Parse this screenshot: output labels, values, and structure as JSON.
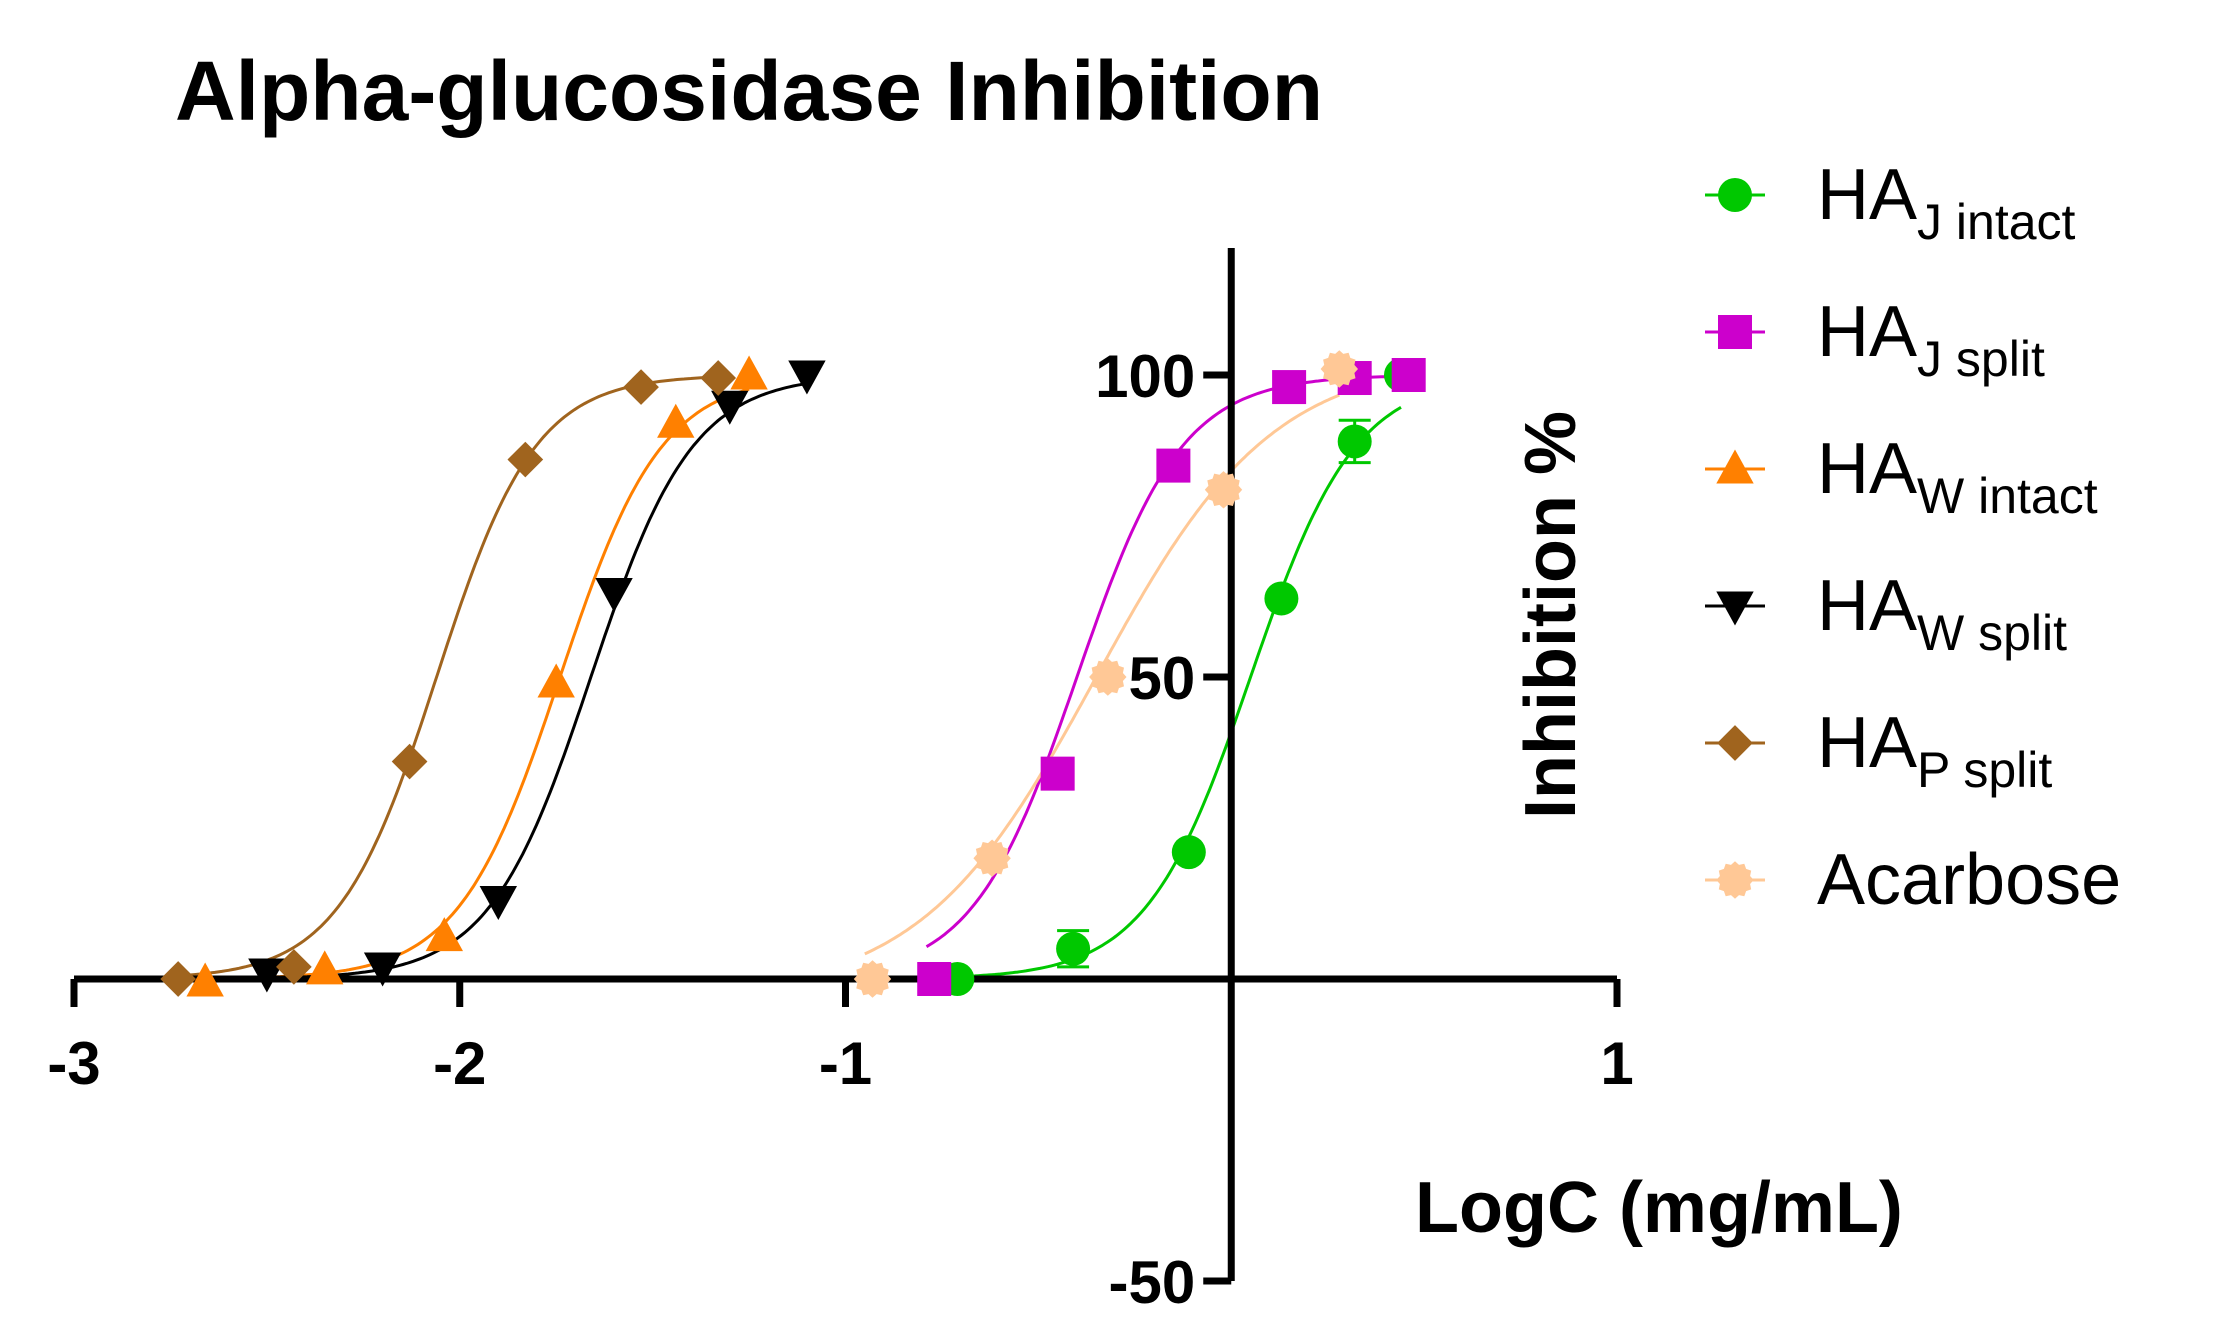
{
  "chart_data": {
    "type": "scatter",
    "title": "Alpha-glucosidase Inhibition",
    "xlabel": "LogC (mg/mL)",
    "ylabel": "Inhibition %",
    "xlim": [
      -3,
      1
    ],
    "ylim": [
      -50,
      120
    ],
    "xticks": [
      -3,
      -2,
      -1,
      1
    ],
    "yticks": [
      -50,
      50,
      100
    ],
    "legend_position": "right",
    "series": [
      {
        "name": "HA",
        "subscript": "J intact",
        "color": "#00c800",
        "marker": "circle",
        "x": [
          -0.71,
          -0.41,
          -0.11,
          0.13,
          0.32,
          0.44
        ],
        "y": [
          0,
          5,
          21,
          63,
          89,
          100
        ],
        "errors": [
          0,
          3,
          0,
          0,
          3.5,
          0
        ],
        "fit": {
          "bottom": 0,
          "top": 100,
          "logEC50": 0.05,
          "hill": 3.2
        }
      },
      {
        "name": "HA",
        "subscript": "J split",
        "color": "#cc00cc",
        "marker": "square",
        "x": [
          -0.77,
          -0.45,
          -0.15,
          0.15,
          0.32,
          0.46
        ],
        "y": [
          0,
          34,
          85,
          98,
          99.5,
          100
        ],
        "errors": [
          0,
          0,
          0,
          0,
          0,
          0
        ],
        "fit": {
          "bottom": 0,
          "top": 100,
          "logEC50": -0.4,
          "hill": 3.2
        }
      },
      {
        "name": "HA",
        "subscript": "W intact",
        "color": "#ff8000",
        "marker": "triangle-up",
        "x": [
          -2.66,
          -2.35,
          -2.04,
          -1.75,
          -1.44,
          -1.25
        ],
        "y": [
          -0.5,
          1.5,
          7,
          49,
          92,
          100
        ],
        "errors": [
          0,
          0,
          0,
          0,
          0,
          0
        ],
        "fit": {
          "bottom": 0,
          "top": 100,
          "logEC50": -1.74,
          "hill": 3.3
        }
      },
      {
        "name": "HA",
        "subscript": "W split",
        "color": "#000000",
        "marker": "triangle-down",
        "x": [
          -2.5,
          -2.2,
          -1.9,
          -1.6,
          -1.3,
          -1.1
        ],
        "y": [
          1,
          2,
          13,
          64,
          95,
          100
        ],
        "errors": [
          0,
          0,
          0,
          0,
          0,
          0
        ],
        "fit": {
          "bottom": 0,
          "top": 100,
          "logEC50": -1.66,
          "hill": 3.3
        }
      },
      {
        "name": "HA",
        "subscript": "P split",
        "color": "#a0641e",
        "marker": "diamond",
        "x": [
          -2.73,
          -2.43,
          -2.13,
          -1.83,
          -1.53,
          -1.33
        ],
        "y": [
          0,
          2,
          36,
          86,
          98,
          99.5
        ],
        "errors": [
          0,
          0,
          0,
          0,
          0,
          0
        ],
        "fit": {
          "bottom": 0,
          "top": 100,
          "logEC50": -2.06,
          "hill": 3.4
        }
      },
      {
        "name": "Acarbose",
        "subscript": "",
        "color": "#ffc896",
        "marker": "star-circle",
        "x": [
          -0.93,
          -0.62,
          -0.32,
          -0.02,
          0.28
        ],
        "y": [
          0,
          20,
          50,
          81,
          101
        ],
        "errors": [
          0,
          0,
          0,
          0,
          0
        ],
        "fit": {
          "bottom": -3,
          "top": 103,
          "logEC50": -0.35,
          "hill": 1.9
        }
      }
    ]
  }
}
